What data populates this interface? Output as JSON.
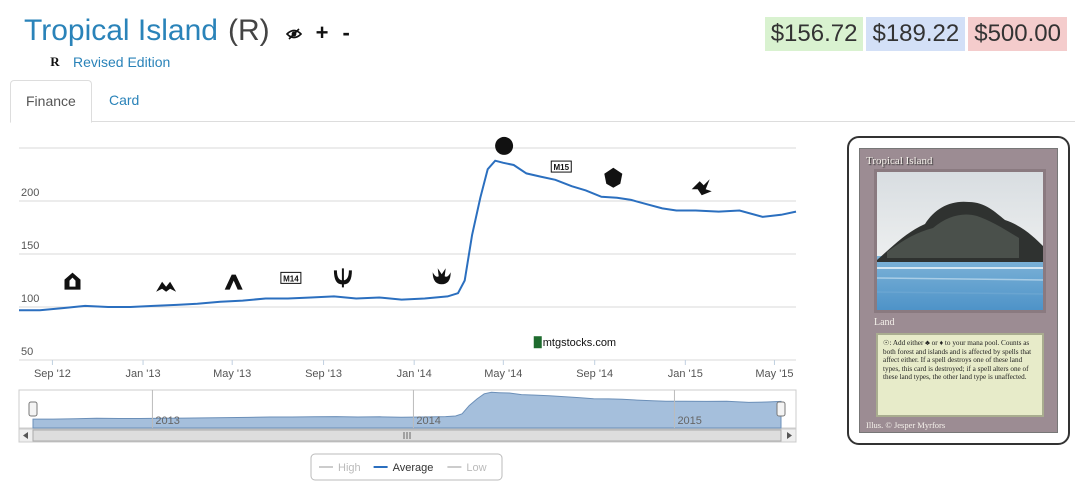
{
  "header": {
    "card_name": "Tropical Island",
    "rarity": "(R)",
    "set_symbol": "R",
    "set_name": "Revised Edition",
    "icons": [
      "eye-icon",
      "plus-icon",
      "minus-icon"
    ],
    "plus_label": "+",
    "minus_label": "-"
  },
  "prices": {
    "low": "$156.72",
    "average": "$189.22",
    "high": "$500.00",
    "colors": {
      "low": "#d9f2d0",
      "average": "#d3e0f7",
      "high": "#f4cccc"
    }
  },
  "tabs": [
    {
      "label": "Finance",
      "active": true
    },
    {
      "label": "Card",
      "active": false
    }
  ],
  "chart_data": {
    "type": "line",
    "title": "",
    "xlabel": "",
    "ylabel": "",
    "ylim": [
      50,
      250
    ],
    "yticks": [
      50,
      100,
      150,
      200
    ],
    "xlim": [
      "2012-07-18",
      "2015-05-30"
    ],
    "x_tick_labels": [
      {
        "label": "Sep '12",
        "date": "2012-09-01"
      },
      {
        "label": "Jan '13",
        "date": "2013-01-01"
      },
      {
        "label": "May '13",
        "date": "2013-05-01"
      },
      {
        "label": "Sep '13",
        "date": "2013-09-01"
      },
      {
        "label": "Jan '14",
        "date": "2014-01-01"
      },
      {
        "label": "May '14",
        "date": "2014-05-01"
      },
      {
        "label": "Sep '14",
        "date": "2014-09-01"
      },
      {
        "label": "Jan '15",
        "date": "2015-01-01"
      },
      {
        "label": "May '15",
        "date": "2015-05-01"
      }
    ],
    "grid": true,
    "watermark": "mtgstocks.com",
    "series": [
      {
        "name": "Average",
        "color": "#2b6fbf",
        "points": [
          [
            "2012-07-18",
            97
          ],
          [
            "2012-08-15",
            97
          ],
          [
            "2012-09-15",
            99
          ],
          [
            "2012-10-15",
            101
          ],
          [
            "2012-11-15",
            100
          ],
          [
            "2012-12-15",
            100
          ],
          [
            "2013-01-15",
            101
          ],
          [
            "2013-02-15",
            102
          ],
          [
            "2013-03-15",
            103
          ],
          [
            "2013-04-15",
            105
          ],
          [
            "2013-05-15",
            106
          ],
          [
            "2013-06-15",
            108
          ],
          [
            "2013-07-15",
            108
          ],
          [
            "2013-08-15",
            109
          ],
          [
            "2013-09-15",
            110
          ],
          [
            "2013-10-15",
            108
          ],
          [
            "2013-11-15",
            109
          ],
          [
            "2013-12-15",
            107
          ],
          [
            "2014-01-15",
            108
          ],
          [
            "2014-02-15",
            110
          ],
          [
            "2014-03-01",
            113
          ],
          [
            "2014-03-10",
            125
          ],
          [
            "2014-03-20",
            168
          ],
          [
            "2014-03-31",
            203
          ],
          [
            "2014-04-10",
            230
          ],
          [
            "2014-04-20",
            238
          ],
          [
            "2014-05-01",
            236
          ],
          [
            "2014-05-15",
            234
          ],
          [
            "2014-06-01",
            226
          ],
          [
            "2014-06-20",
            223
          ],
          [
            "2014-07-10",
            220
          ],
          [
            "2014-08-01",
            214
          ],
          [
            "2014-08-20",
            210
          ],
          [
            "2014-09-10",
            204
          ],
          [
            "2014-10-01",
            203
          ],
          [
            "2014-10-20",
            201
          ],
          [
            "2014-11-10",
            197
          ],
          [
            "2014-12-01",
            193
          ],
          [
            "2014-12-20",
            191
          ],
          [
            "2015-01-15",
            191
          ],
          [
            "2015-02-15",
            190
          ],
          [
            "2015-03-15",
            191
          ],
          [
            "2015-04-15",
            185
          ],
          [
            "2015-05-10",
            187
          ],
          [
            "2015-05-30",
            190
          ]
        ]
      }
    ],
    "set_release_markers": [
      {
        "date": "2012-09-28",
        "y": 124,
        "icon": "return-to-ravnica-set-icon"
      },
      {
        "date": "2013-02-01",
        "y": 120,
        "icon": "gatecrash-set-icon"
      },
      {
        "date": "2013-05-03",
        "y": 123,
        "icon": "dragons-maze-set-icon"
      },
      {
        "date": "2013-07-19",
        "y": 127,
        "icon": "m14-set-icon",
        "label": "M14"
      },
      {
        "date": "2013-09-27",
        "y": 127,
        "icon": "theros-set-icon"
      },
      {
        "date": "2014-02-07",
        "y": 129,
        "icon": "born-of-the-gods-set-icon"
      },
      {
        "date": "2014-05-02",
        "y": 252,
        "icon": "journey-into-nyx-set-icon"
      },
      {
        "date": "2014-07-18",
        "y": 232,
        "icon": "m15-set-icon",
        "label": "M15"
      },
      {
        "date": "2014-09-26",
        "y": 222,
        "icon": "khans-of-tarkir-set-icon"
      },
      {
        "date": "2015-01-23",
        "y": 213,
        "icon": "fate-reforged-set-icon"
      }
    ],
    "navigator": {
      "year_labels": [
        {
          "label": "2013",
          "date": "2013-01-01"
        },
        {
          "label": "2014",
          "date": "2014-01-01"
        },
        {
          "label": "2015",
          "date": "2015-01-01"
        }
      ]
    },
    "legend": {
      "position": "bottom-center",
      "items": [
        {
          "label": "High",
          "enabled": false,
          "color": "#cccccc"
        },
        {
          "label": "Average",
          "enabled": true,
          "color": "#2b6fbf"
        },
        {
          "label": "Low",
          "enabled": false,
          "color": "#cccccc"
        }
      ]
    }
  },
  "card": {
    "title": "Tropical Island",
    "type_line": "Land",
    "rules_text": "☉: Add either ♣ or ♦ to your mana pool. Counts as both forest and islands and is affected by spells that affect either. If a spell destroys one of these land types, this card is destroyed; if a spell alters one of these land types, the other land type is unaffected.",
    "illustrator": "Illus. © Jesper Myrfors"
  }
}
